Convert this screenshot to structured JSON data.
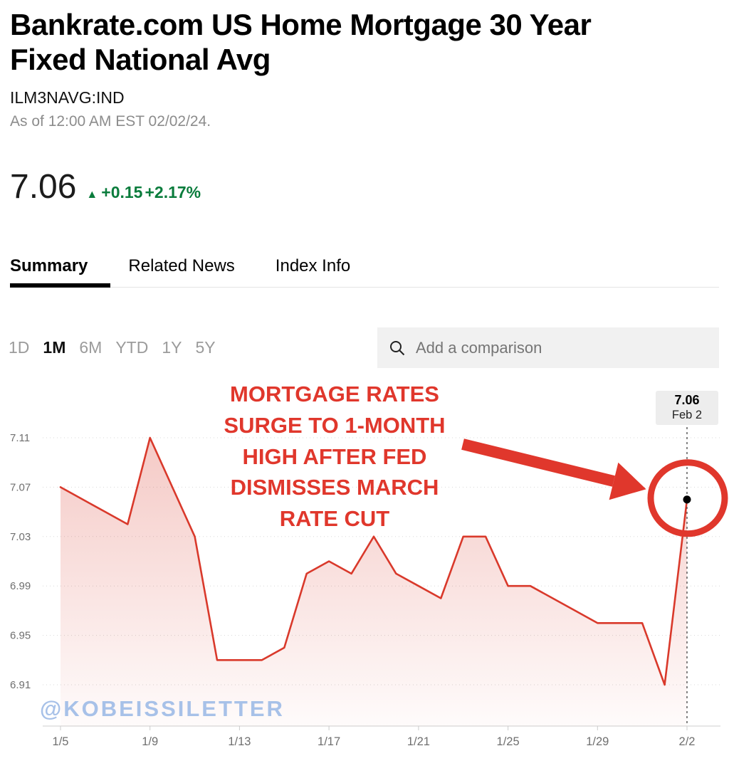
{
  "header": {
    "title": "Bankrate.com US Home Mortgage 30 Year Fixed National Avg",
    "ticker": "ILM3NAVG:IND",
    "as_of": "As of 12:00 AM EST 02/02/24.",
    "price": "7.06",
    "change_icon": "▲",
    "change_abs": "+0.15",
    "change_pct": "+2.17%"
  },
  "tabs": [
    {
      "label": "Summary",
      "active": true
    },
    {
      "label": "Related News",
      "active": false
    },
    {
      "label": "Index Info",
      "active": false
    }
  ],
  "ranges": [
    {
      "label": "1D",
      "active": false
    },
    {
      "label": "1M",
      "active": true
    },
    {
      "label": "6M",
      "active": false
    },
    {
      "label": "YTD",
      "active": false
    },
    {
      "label": "1Y",
      "active": false
    },
    {
      "label": "5Y",
      "active": false
    }
  ],
  "comparison": {
    "placeholder": "Add a comparison"
  },
  "annotation": {
    "lines": [
      "MORTGAGE RATES",
      "SURGE TO 1-MONTH",
      "HIGH AFTER FED",
      "DISMISSES MARCH",
      "RATE CUT"
    ]
  },
  "last_point_label": {
    "value": "7.06",
    "date": "Feb 2"
  },
  "watermark": "@KOBEISSILETTER",
  "colors": {
    "line_red": "#d9392b",
    "annotation_red": "#e0372c",
    "green": "#0a7c3c",
    "watermark_blue": "#a7c1e8"
  },
  "chart_data": {
    "type": "line",
    "title": "Bankrate.com US Home Mortgage 30 Year Fixed National Avg (1M)",
    "series_name": "ILM3NAVG:IND 30-year fixed mortgage rate (%)",
    "x": [
      "1/5",
      "1/6",
      "1/7",
      "1/8",
      "1/9",
      "1/10",
      "1/11",
      "1/12",
      "1/13",
      "1/14",
      "1/15",
      "1/16",
      "1/17",
      "1/18",
      "1/19",
      "1/20",
      "1/21",
      "1/22",
      "1/23",
      "1/24",
      "1/25",
      "1/26",
      "1/27",
      "1/28",
      "1/29",
      "1/30",
      "1/31",
      "2/1",
      "2/2"
    ],
    "values": [
      7.07,
      7.06,
      7.05,
      7.04,
      7.11,
      7.07,
      7.03,
      6.93,
      6.93,
      6.93,
      6.94,
      7.0,
      7.01,
      7.0,
      7.03,
      7.0,
      6.99,
      6.98,
      7.03,
      7.03,
      6.99,
      6.99,
      6.98,
      6.97,
      6.96,
      6.96,
      6.96,
      6.91,
      7.06
    ],
    "x_tick_labels": [
      "1/5",
      "1/9",
      "1/13",
      "1/17",
      "1/21",
      "1/25",
      "1/29",
      "2/2"
    ],
    "y_ticks": [
      7.11,
      7.07,
      7.03,
      6.99,
      6.95,
      6.91
    ],
    "ylim": [
      6.88,
      7.13
    ],
    "grid": "dotted horizontal",
    "legend": "none",
    "last_point": {
      "x": "2/2",
      "value": 7.06
    }
  }
}
